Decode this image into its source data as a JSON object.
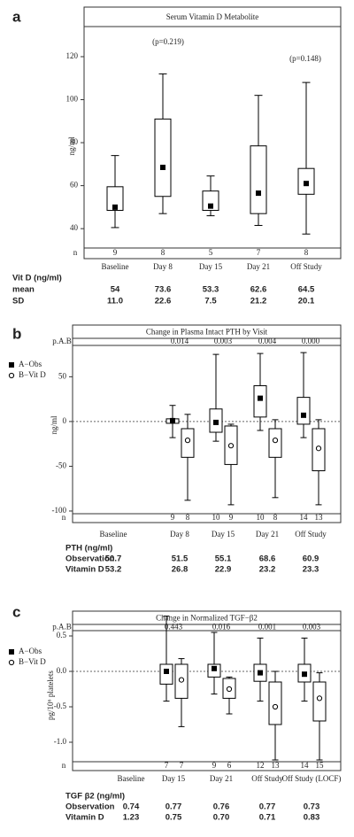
{
  "chart_data": [
    {
      "panel": "a",
      "type": "box",
      "title": "Serum Vitamin D Metabolite",
      "y_label": "ng/ml",
      "categories": [
        "Baseline",
        "Day 8",
        "Day 15",
        "Day 21",
        "Off Study"
      ],
      "ylim": [
        31,
        134
      ],
      "yticks": [
        40,
        60,
        80,
        100,
        120
      ],
      "annotations": [
        "(p=0.219)",
        "(p=0.148)"
      ],
      "n_label": "n",
      "series": [
        {
          "color": "#000000",
          "marker": "square",
          "low": [
            40.5,
            47,
            46,
            41.5,
            37.5
          ],
          "q1": [
            48.5,
            55,
            48.5,
            47,
            56
          ],
          "q3": [
            59.5,
            91,
            57.5,
            78.5,
            68
          ],
          "high": [
            74,
            112,
            64.5,
            102,
            108
          ],
          "mean": [
            50,
            68.5,
            50.5,
            56.5,
            61
          ],
          "n": [
            9,
            8,
            5,
            7,
            8
          ]
        }
      ],
      "table": {
        "header": "Vit D  (ng/ml)",
        "rows": [
          {
            "label": "mean",
            "values": [
              "54",
              "73.6",
              "53.3",
              "62.6",
              "64.5"
            ]
          },
          {
            "label": "SD",
            "values": [
              "11.0",
              "22.6",
              "7.5",
              "21.2",
              "20.1"
            ]
          }
        ]
      }
    },
    {
      "panel": "b",
      "type": "box",
      "title": "Change in Plasma Intact PTH by Visit",
      "y_label": "ng/ml",
      "categories": [
        "Baseline",
        "Day 8",
        "Day 15",
        "Day 21",
        "Off Study"
      ],
      "ylim": [
        -103,
        85
      ],
      "yticks": [
        -100,
        -50,
        0,
        50
      ],
      "zero_line": true,
      "p_label": "p.A.B",
      "p_values": [
        null,
        0.014,
        0.003,
        0.004,
        0
      ],
      "p_value_labels": [
        null,
        "0.014",
        "0.003",
        "0.004",
        "0.000"
      ],
      "n_label": "n",
      "series": [
        {
          "name": "A−Obs",
          "color": "#000000",
          "marker": "square",
          "low": [
            null,
            -18,
            -22,
            -10,
            -18
          ],
          "q1": [
            null,
            -2,
            -12,
            5,
            -3
          ],
          "q3": [
            null,
            3,
            14,
            40,
            27
          ],
          "high": [
            null,
            18,
            75,
            76,
            77
          ],
          "mean": [
            null,
            1,
            -1,
            26,
            7
          ],
          "n": [
            null,
            9,
            10,
            10,
            14
          ]
        },
        {
          "name": "B−Vit D",
          "color": "#000000",
          "marker": "circle",
          "low": [
            null,
            -88,
            -93,
            -85,
            -93
          ],
          "q1": [
            null,
            -40,
            -48,
            -40,
            -55
          ],
          "q3": [
            null,
            -8,
            -5,
            -8,
            -8
          ],
          "high": [
            null,
            8,
            -3,
            2,
            2
          ],
          "mean": [
            null,
            -21,
            -27,
            -21,
            -30
          ],
          "n": [
            null,
            8,
            9,
            8,
            13
          ]
        }
      ],
      "table": {
        "header": "PTH (ng/ml)",
        "rows": [
          {
            "label": "Observation",
            "values": [
              "50.7",
              "51.5",
              "55.1",
              "68.6",
              "60.9"
            ]
          },
          {
            "label": "Vitamin D",
            "values": [
              "53.2",
              "26.8",
              "22.9",
              "23.2",
              "23.3"
            ]
          }
        ]
      }
    },
    {
      "panel": "c",
      "type": "box",
      "title": "Change in Normalized TGF−β2",
      "y_label": "pg/10⁶ platelets",
      "categories": [
        "Baseline",
        "Day 15",
        "Day 21",
        "Off Study",
        "Off Study (LOCF)"
      ],
      "ylim": [
        -1.275,
        0.575
      ],
      "yticks": [
        0.5,
        {
          "value": 0,
          "label": "0.0"
        },
        -0.5,
        {
          "value": -1,
          "label": "-1.0"
        }
      ],
      "zero_line": true,
      "p_label": "p.A.B",
      "p_values": [
        null,
        0.443,
        0.016,
        0.001,
        0.003
      ],
      "p_value_labels": [
        null,
        "0.443",
        "0.016",
        "0.001",
        "0.003"
      ],
      "n_label": "n",
      "series": [
        {
          "name": "A−Obs",
          "color": "#000000",
          "marker": "square",
          "low": [
            null,
            -0.42,
            -0.32,
            -0.42,
            -0.42
          ],
          "q1": [
            null,
            -0.18,
            -0.08,
            -0.14,
            -0.15
          ],
          "q3": [
            null,
            0.1,
            0.1,
            0.1,
            0.1
          ],
          "high": [
            null,
            0.78,
            0.55,
            0.47,
            0.47
          ],
          "mean": [
            null,
            0,
            0.04,
            -0.02,
            -0.04
          ],
          "n": [
            null,
            7,
            9,
            12,
            14
          ]
        },
        {
          "name": "B−Vit D",
          "color": "#000000",
          "marker": "circle",
          "low": [
            null,
            -0.78,
            -0.6,
            -1.25,
            -1.25
          ],
          "q1": [
            null,
            -0.38,
            -0.38,
            -0.75,
            -0.7
          ],
          "q3": [
            null,
            0.1,
            -0.1,
            -0.15,
            -0.15
          ],
          "high": [
            null,
            0.18,
            -0.08,
            0,
            -0.02
          ],
          "mean": [
            null,
            -0.12,
            -0.25,
            -0.5,
            -0.38
          ],
          "n": [
            null,
            7,
            6,
            13,
            15
          ]
        }
      ],
      "table": {
        "header": "TGF β2 (ng/ml)",
        "rows": [
          {
            "label": "Observation",
            "values": [
              "0.74",
              "0.77",
              "0.76",
              "0.77",
              "0.73"
            ]
          },
          {
            "label": "Vitamin D",
            "values": [
              "1.23",
              "0.75",
              "0.70",
              "0.71",
              "0.83"
            ]
          }
        ]
      }
    }
  ]
}
